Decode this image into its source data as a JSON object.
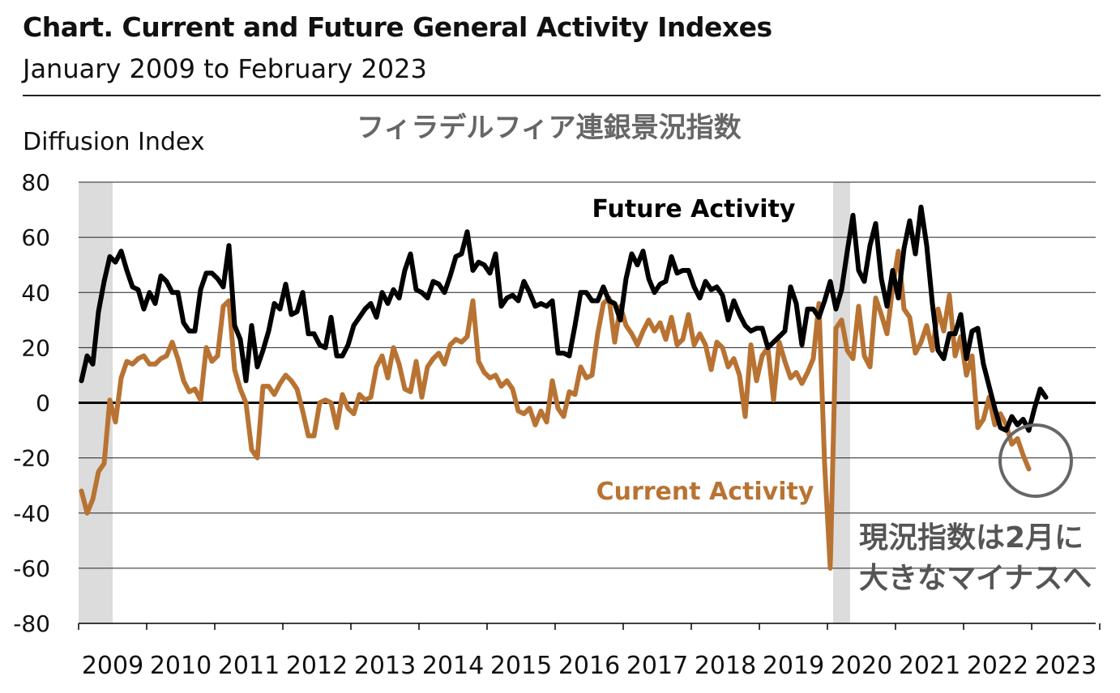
{
  "title": "Chart. Current and Future General Activity Indexes",
  "subtitle": "January 2009 to February 2023",
  "jp_title": "フィラデルフィア連銀景況指数",
  "annotation": [
    "現況指数は2月に",
    "大きなマイナスへ"
  ],
  "chart_data": {
    "type": "line",
    "ylabel": "Diffusion Index",
    "ylim": [
      -80,
      80
    ],
    "yticks": [
      80,
      60,
      40,
      20,
      0,
      -20,
      -40,
      -60,
      -80
    ],
    "xlabels": [
      "2009",
      "2010",
      "2011",
      "2012",
      "2013",
      "2014",
      "2015",
      "2016",
      "2017",
      "2018",
      "2019",
      "2020",
      "2021",
      "2022",
      "2023"
    ],
    "x_start": "2009-01",
    "recessions": [
      [
        "2009-01",
        "2009-06"
      ],
      [
        "2020-02",
        "2020-04"
      ]
    ],
    "series": [
      {
        "name": "Future Activity",
        "color": "#000000",
        "values": [
          8,
          17,
          14,
          33,
          44,
          53,
          51,
          55,
          48,
          42,
          41,
          34,
          40,
          36,
          46,
          44,
          40,
          40,
          29,
          26,
          26,
          41,
          47,
          47,
          45,
          42,
          57,
          28,
          23,
          8,
          28,
          13,
          19,
          26,
          36,
          34,
          43,
          32,
          33,
          40,
          25,
          25,
          21,
          20,
          31,
          17,
          17,
          21,
          28,
          31,
          34,
          36,
          31,
          40,
          36,
          41,
          38,
          48,
          54,
          41,
          40,
          38,
          44,
          43,
          40,
          46,
          53,
          54,
          62,
          48,
          51,
          50,
          47,
          54,
          35,
          38,
          39,
          37,
          44,
          40,
          35,
          36,
          35,
          37,
          18,
          18,
          17,
          28,
          40,
          40,
          37,
          37,
          42,
          37,
          36,
          30,
          45,
          54,
          50,
          55,
          45,
          40,
          43,
          44,
          53,
          47,
          48,
          48,
          42,
          38,
          44,
          41,
          42,
          39,
          30,
          37,
          32,
          28,
          26,
          27,
          27,
          20,
          22,
          24,
          26,
          42,
          36,
          21,
          34,
          34,
          31,
          37,
          44,
          34,
          41,
          55,
          68,
          48,
          44,
          57,
          65,
          45,
          35,
          48,
          38,
          56,
          66,
          54,
          71,
          57,
          36,
          19,
          16,
          25,
          25,
          32,
          16,
          26,
          27,
          14,
          6,
          -2,
          -9,
          -10,
          -5,
          -8,
          -6,
          -10,
          -2,
          5,
          2
        ]
      },
      {
        "name": "Current Activity",
        "color": "#b87333",
        "values": [
          -32,
          -40,
          -35,
          -25,
          -22,
          1,
          -7,
          9,
          15,
          14,
          16,
          17,
          14,
          14,
          16,
          17,
          22,
          16,
          8,
          4,
          5,
          1,
          20,
          15,
          17,
          35,
          37,
          12,
          5,
          0,
          -17,
          -20,
          6,
          6,
          3,
          7,
          10,
          8,
          5,
          -3,
          -12,
          -12,
          0,
          1,
          0,
          -9,
          3,
          -2,
          -4,
          3,
          1,
          2,
          13,
          17,
          9,
          20,
          14,
          5,
          4,
          15,
          2,
          13,
          16,
          18,
          14,
          21,
          23,
          22,
          24,
          37,
          15,
          11,
          9,
          10,
          6,
          8,
          5,
          -3,
          -4,
          -2,
          -8,
          -3,
          -7,
          8,
          -2,
          -5,
          4,
          3,
          13,
          9,
          10,
          25,
          36,
          38,
          22,
          35,
          28,
          25,
          21,
          26,
          30,
          26,
          29,
          23,
          31,
          21,
          23,
          32,
          21,
          25,
          21,
          12,
          22,
          20,
          13,
          16,
          10,
          -5,
          21,
          8,
          17,
          20,
          1,
          22,
          15,
          9,
          11,
          7,
          11,
          16,
          36,
          -22,
          -60,
          27,
          30,
          19,
          16,
          35,
          17,
          13,
          38,
          32,
          25,
          42,
          55,
          34,
          31,
          18,
          22,
          28,
          19,
          34,
          26,
          39,
          17,
          24,
          10,
          17,
          -9,
          -6,
          2,
          -8,
          -4,
          -8,
          -15,
          -13,
          -19,
          -24
        ]
      }
    ]
  }
}
